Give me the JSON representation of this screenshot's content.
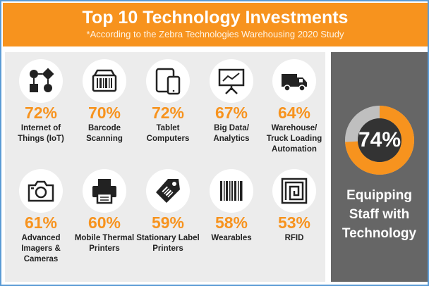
{
  "header": {
    "title": "Top 10 Technology Investments",
    "subtitle": "*According to the Zebra Technologies Warehousing 2020 Study"
  },
  "items": [
    {
      "icon": "iot-icon",
      "percent": "72%",
      "label": "Internet of Things (IoT)"
    },
    {
      "icon": "barcode-scanner-icon",
      "percent": "70%",
      "label": "Barcode Scanning"
    },
    {
      "icon": "tablet-icon",
      "percent": "72%",
      "label": "Tablet Computers"
    },
    {
      "icon": "analytics-chart-icon",
      "percent": "67%",
      "label": "Big Data/ Analytics"
    },
    {
      "icon": "truck-icon",
      "percent": "64%",
      "label": "Warehouse/ Truck Loading Automation"
    },
    {
      "icon": "camera-icon",
      "percent": "61%",
      "label": "Advanced Imagers & Cameras"
    },
    {
      "icon": "printer-icon",
      "percent": "60%",
      "label": "Mobile Thermal Printers"
    },
    {
      "icon": "label-tag-icon",
      "percent": "59%",
      "label": "Stationary Label Printers"
    },
    {
      "icon": "barcode-icon",
      "percent": "58%",
      "label": "Wearables"
    },
    {
      "icon": "rfid-icon",
      "percent": "53%",
      "label": "RFID"
    }
  ],
  "highlight": {
    "percent": "74%",
    "value": 0.74,
    "label": "Equipping Staff with Technology"
  },
  "colors": {
    "accent": "#f7931e",
    "panel": "#666666",
    "background": "#ececec",
    "donut_track": "#bfbfbf",
    "donut_center": "#333333"
  }
}
